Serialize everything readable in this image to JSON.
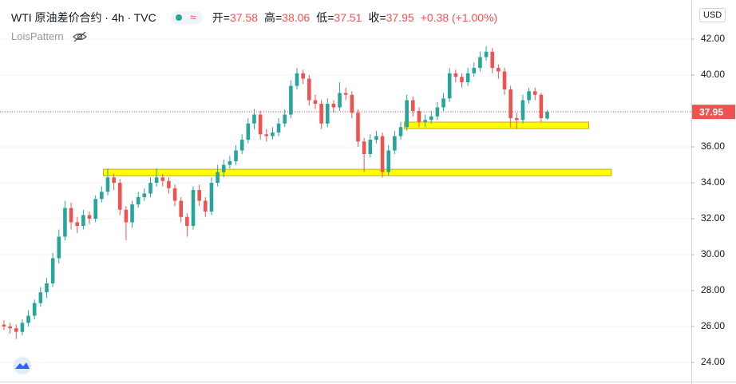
{
  "chart_data": {
    "type": "candlestick",
    "title": "WTI 原油差价合约 · 4h · TVC",
    "legend_items": [
      {
        "label": "开=",
        "value": "37.58"
      },
      {
        "label": "高=",
        "value": "38.06"
      },
      {
        "label": "低=",
        "value": "37.51"
      },
      {
        "label": "收=",
        "value": "37.95"
      }
    ],
    "change": "+0.38 (+1.00%)",
    "indicator": "LoisPattern",
    "currency": "USD",
    "up_color": "#26a69a",
    "down_color": "#ef5350",
    "open": [
      26.1,
      26.0,
      25.9,
      25.7,
      26.2,
      26.6,
      27.3,
      27.9,
      28.4,
      29.8,
      31.0,
      32.6,
      31.8,
      31.6,
      32.2,
      32.0,
      33.1,
      33.5,
      34.3,
      34.0,
      32.5,
      31.8,
      32.8,
      33.2,
      33.4,
      34.0,
      34.3,
      34.1,
      33.7,
      33.0,
      32.1,
      31.6,
      33.6,
      33.0,
      32.4,
      34.0,
      34.6,
      35.0,
      35.2,
      35.8,
      36.4,
      37.3,
      37.8,
      36.7,
      36.6,
      36.8,
      37.3,
      37.8,
      39.4,
      40.1,
      39.8,
      38.6,
      38.4,
      37.3,
      38.4,
      38.2,
      39.0,
      38.9,
      37.9,
      36.3,
      35.6,
      36.4,
      36.6,
      34.6,
      35.8,
      36.6,
      37.1,
      38.6,
      38.0,
      37.4,
      37.5,
      37.7,
      38.2,
      38.7,
      40.1,
      39.9,
      39.6,
      40.1,
      40.4,
      41.0,
      41.3,
      40.4,
      40.2,
      39.2,
      37.6,
      37.5,
      38.6,
      39.1,
      38.9,
      37.58
    ],
    "high": [
      26.35,
      26.2,
      26.1,
      26.4,
      26.9,
      27.5,
      28.2,
      28.7,
      30.1,
      31.4,
      33.0,
      32.9,
      32.1,
      32.5,
      32.4,
      33.3,
      33.8,
      34.8,
      34.5,
      34.2,
      32.7,
      33.0,
      33.5,
      33.7,
      34.3,
      34.8,
      34.5,
      34.3,
      33.9,
      33.2,
      32.3,
      33.8,
      33.9,
      33.2,
      34.3,
      35.0,
      35.3,
      35.5,
      36.1,
      36.7,
      37.6,
      38.1,
      38.0,
      37.0,
      37.1,
      37.6,
      38.1,
      39.7,
      40.4,
      40.3,
      40.0,
      38.9,
      38.6,
      38.7,
      38.6,
      39.6,
      39.3,
      39.1,
      38.1,
      36.5,
      36.7,
      36.9,
      36.8,
      36.1,
      36.9,
      37.4,
      38.9,
      38.8,
      38.2,
      37.8,
      38.0,
      38.5,
      39.0,
      40.4,
      40.3,
      40.1,
      40.4,
      40.7,
      41.3,
      41.6,
      41.5,
      40.6,
      40.4,
      39.4,
      37.9,
      38.9,
      39.3,
      39.3,
      39.0,
      38.06
    ],
    "low": [
      25.8,
      25.6,
      25.3,
      25.5,
      26.0,
      26.4,
      27.1,
      27.6,
      28.2,
      29.5,
      30.8,
      31.4,
      31.2,
      31.4,
      31.7,
      31.8,
      32.9,
      33.3,
      33.6,
      32.2,
      30.8,
      31.5,
      32.6,
      33.0,
      33.2,
      33.8,
      33.8,
      33.4,
      32.7,
      31.8,
      31.0,
      31.4,
      32.7,
      32.1,
      32.2,
      33.8,
      34.3,
      34.8,
      35.0,
      35.6,
      36.2,
      37.0,
      36.4,
      36.3,
      36.4,
      36.6,
      37.1,
      37.6,
      39.2,
      39.5,
      38.3,
      38.1,
      37.0,
      37.1,
      37.9,
      38.0,
      38.6,
      37.6,
      36.0,
      34.6,
      35.4,
      36.2,
      34.3,
      34.4,
      35.6,
      36.4,
      36.9,
      37.7,
      37.1,
      37.1,
      37.3,
      37.5,
      38.0,
      38.5,
      39.6,
      39.3,
      39.4,
      39.9,
      40.2,
      40.8,
      40.1,
      39.8,
      38.9,
      37.1,
      37.0,
      37.3,
      38.4,
      38.6,
      37.4,
      37.51
    ],
    "close": [
      26.0,
      25.9,
      25.7,
      26.2,
      26.6,
      27.3,
      27.9,
      28.4,
      29.8,
      31.0,
      32.6,
      31.8,
      31.6,
      32.2,
      32.0,
      33.1,
      33.5,
      34.3,
      34.0,
      32.5,
      31.8,
      32.8,
      33.2,
      33.4,
      34.0,
      34.3,
      34.1,
      33.7,
      33.0,
      32.1,
      31.6,
      33.6,
      33.0,
      32.4,
      34.0,
      34.6,
      35.0,
      35.2,
      35.8,
      36.4,
      37.3,
      37.8,
      36.7,
      36.6,
      36.8,
      37.3,
      37.8,
      39.4,
      40.1,
      39.8,
      38.6,
      38.4,
      37.3,
      38.4,
      38.2,
      39.0,
      38.9,
      37.9,
      36.3,
      35.6,
      36.4,
      36.6,
      34.6,
      35.8,
      36.6,
      37.1,
      38.6,
      38.0,
      37.4,
      37.5,
      37.7,
      38.2,
      38.7,
      40.1,
      39.9,
      39.6,
      40.1,
      40.4,
      41.0,
      41.3,
      40.4,
      40.2,
      39.2,
      37.6,
      37.5,
      38.6,
      39.1,
      38.9,
      37.6,
      37.95
    ],
    "xlim": [
      -0.65,
      112.6
    ],
    "ylim": [
      22.93,
      44.18
    ],
    "yticks": [
      {
        "value": 24,
        "label": "24.00"
      },
      {
        "value": 26,
        "label": "26.00"
      },
      {
        "value": 28,
        "label": "28.00"
      },
      {
        "value": 30,
        "label": "30.00"
      },
      {
        "value": 32,
        "label": "32.00"
      },
      {
        "value": 34,
        "label": "34.00"
      },
      {
        "value": 36,
        "label": "36.00"
      },
      {
        "value": 38,
        "label": "38.00"
      },
      {
        "value": 40,
        "label": "40.00"
      },
      {
        "value": 42,
        "label": "42.00"
      }
    ],
    "grid": true,
    "last_price": {
      "value": 37.95,
      "label": "37.95",
      "color": "#ef5350"
    },
    "zones": [
      {
        "x0": 16.3,
        "x1": 99.5,
        "y0": 34.4,
        "y1": 34.75,
        "color": "#ffff00"
      },
      {
        "x0": 65.6,
        "x1": 95.8,
        "y0": 37.02,
        "y1": 37.38,
        "color": "#ffff00"
      }
    ]
  }
}
